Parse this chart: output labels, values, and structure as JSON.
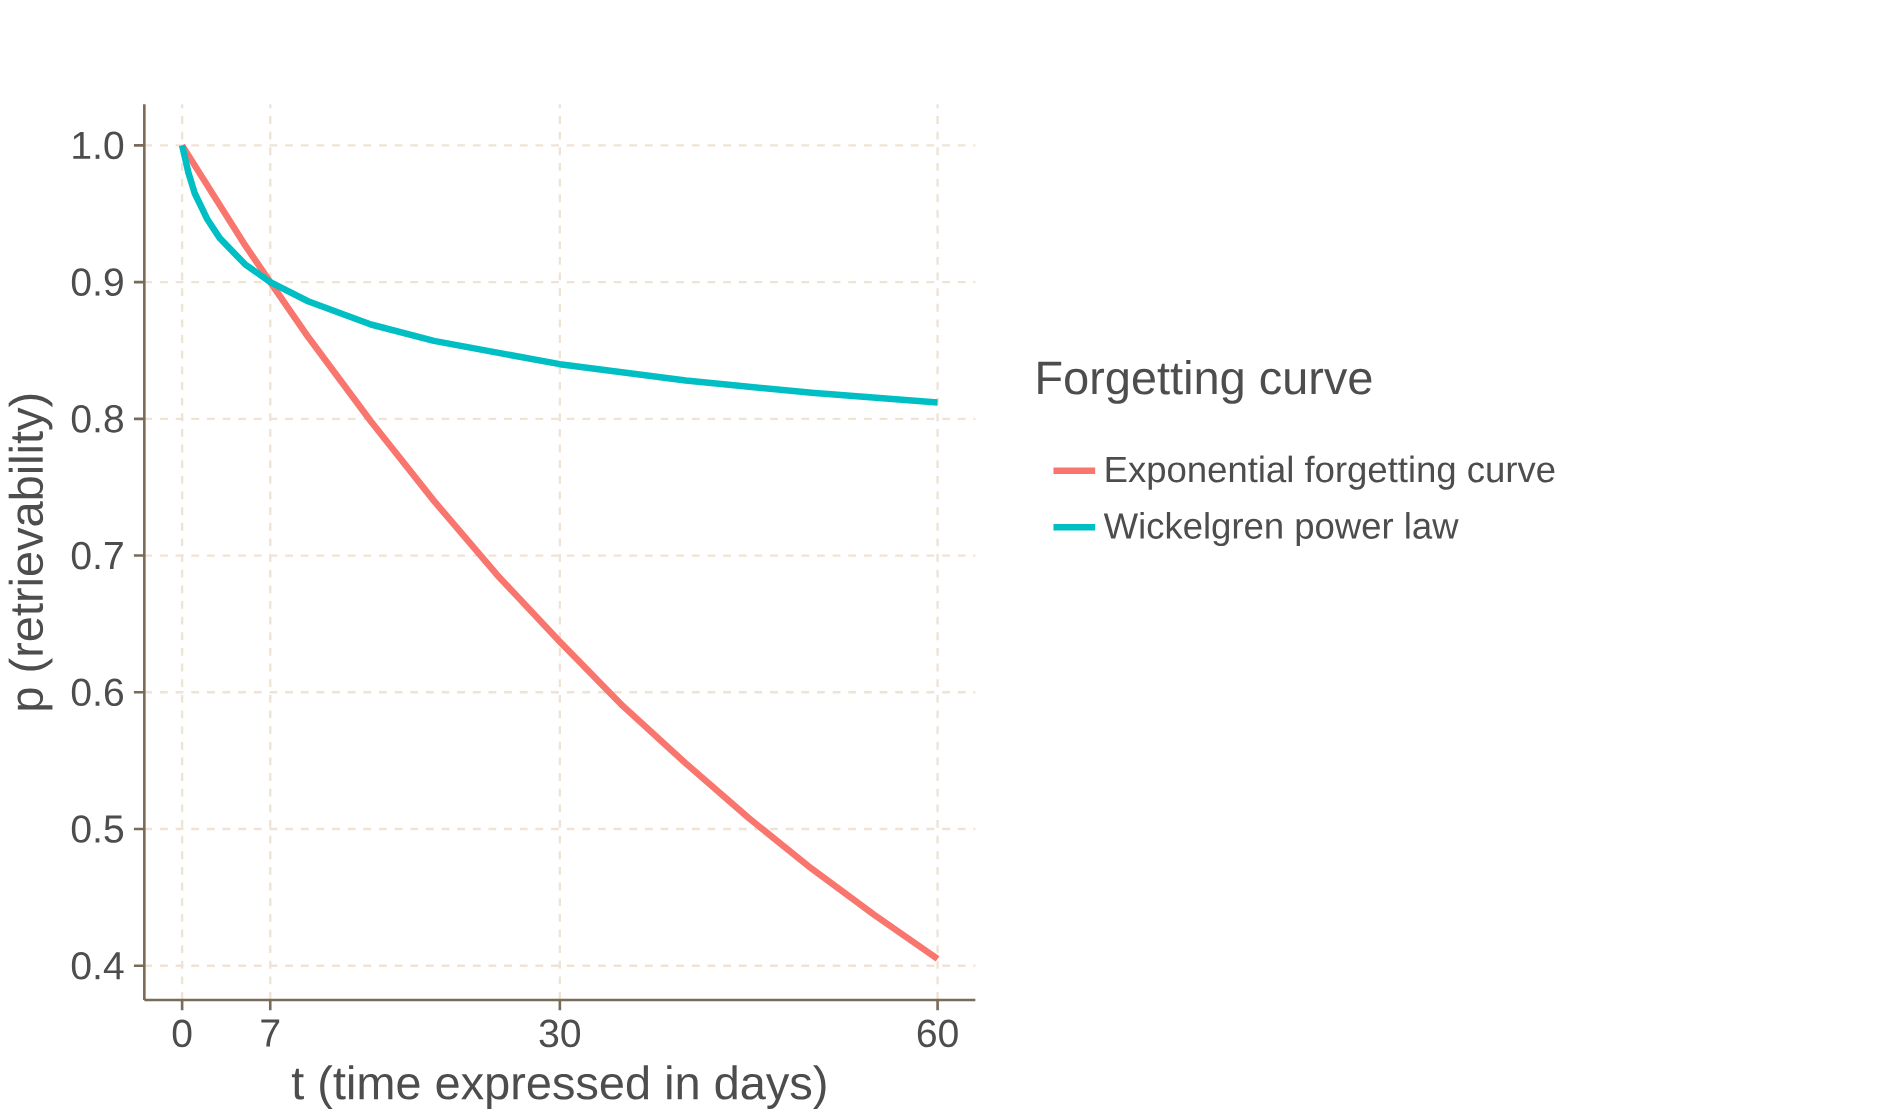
{
  "chart_data": {
    "type": "line",
    "xlabel": "t (time expressed in days)",
    "ylabel": "p (retrievability)",
    "legend_title": "Forgetting curve",
    "xlim": [
      -3,
      63
    ],
    "ylim": [
      0.375,
      1.03
    ],
    "xticks": [
      0,
      7,
      30,
      60
    ],
    "yticks": [
      0.4,
      0.5,
      0.6,
      0.7,
      0.8,
      0.9,
      {
        "value": 1,
        "label": "1.0"
      }
    ],
    "grid": true,
    "legend": "right",
    "series": [
      {
        "name": "Exponential forgetting curve",
        "color": "#f8766d",
        "x": [
          0,
          5,
          7,
          10,
          15,
          20,
          25,
          30,
          35,
          40,
          45,
          50,
          55,
          60
        ],
        "values": [
          1.0,
          0.927,
          0.9,
          0.86,
          0.798,
          0.74,
          0.686,
          0.637,
          0.59,
          0.548,
          0.508,
          0.471,
          0.437,
          0.405
        ]
      },
      {
        "name": "Wickelgren power law",
        "color": "#00bfc4",
        "x": [
          0,
          0.5,
          1,
          2,
          3,
          5,
          7,
          10,
          15,
          20,
          30,
          40,
          50,
          60
        ],
        "values": [
          1.0,
          0.98,
          0.965,
          0.946,
          0.932,
          0.913,
          0.9,
          0.886,
          0.869,
          0.857,
          0.84,
          0.828,
          0.819,
          0.812
        ]
      }
    ]
  }
}
